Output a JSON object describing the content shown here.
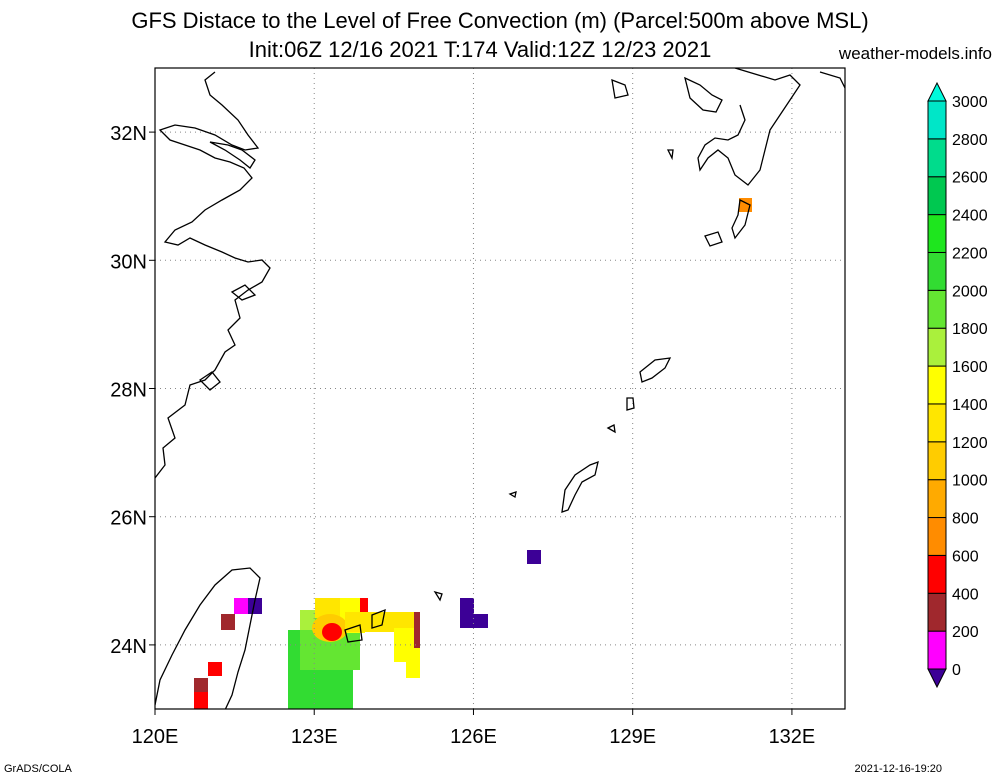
{
  "header": {
    "title_line1": "GFS Distace to the Level of Free Convection (m) (Parcel:500m above MSL)",
    "title_line2": "Init:06Z 12/16 2021 T:174 Valid:12Z 12/23 2021",
    "site": "weather-models.info"
  },
  "footer": {
    "left": "GrADS/COLA",
    "right": "2021-12-16-19:20"
  },
  "map": {
    "lon_range": [
      120,
      133
    ],
    "lat_range": [
      23,
      33
    ],
    "lon_ticks": [
      {
        "value": 120,
        "label": "120E"
      },
      {
        "value": 123,
        "label": "123E"
      },
      {
        "value": 126,
        "label": "126E"
      },
      {
        "value": 129,
        "label": "129E"
      },
      {
        "value": 132,
        "label": "132E"
      }
    ],
    "lat_ticks": [
      {
        "value": 24,
        "label": "24N"
      },
      {
        "value": 26,
        "label": "26N"
      },
      {
        "value": 28,
        "label": "28N"
      },
      {
        "value": 30,
        "label": "30N"
      },
      {
        "value": 32,
        "label": "32N"
      }
    ],
    "grid": true
  },
  "colorbar": {
    "levels": [
      "0",
      "200",
      "400",
      "600",
      "800",
      "1000",
      "1200",
      "1400",
      "1600",
      "1800",
      "2000",
      "2200",
      "2400",
      "2600",
      "2800",
      "3000"
    ],
    "colors": [
      "#3c0096",
      "#ff00ff",
      "#a0282d",
      "#ff0000",
      "#ff8c00",
      "#ffaa00",
      "#ffcc00",
      "#ffe600",
      "#ffff00",
      "#aaf03c",
      "#64e632",
      "#32dc32",
      "#1ee61e",
      "#00c850",
      "#00dc8c",
      "#00e6c8",
      "#00fadc"
    ]
  }
}
